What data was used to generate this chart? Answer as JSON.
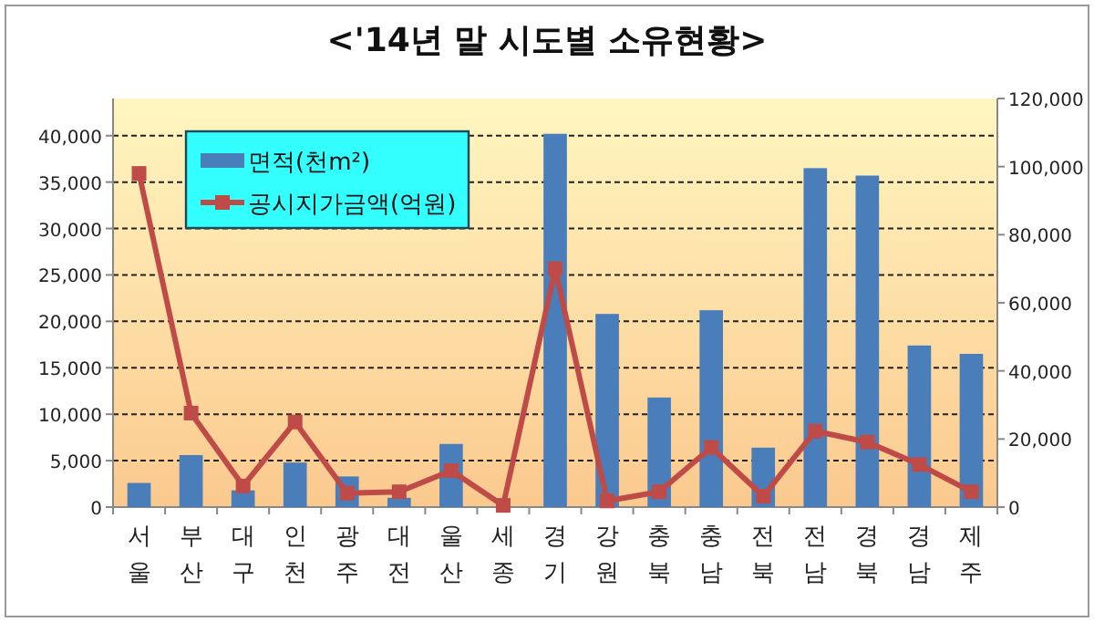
{
  "chart_data": {
    "type": "bar",
    "title": "<'14년 말 시도별 소유현황>",
    "categories": [
      "서울",
      "부산",
      "대구",
      "인천",
      "광주",
      "대전",
      "울산",
      "세종",
      "경기",
      "강원",
      "충북",
      "충남",
      "전북",
      "전남",
      "경북",
      "경남",
      "제주"
    ],
    "series": [
      {
        "name": "면적(천m²)",
        "color": "#4a7ebb",
        "values": [
          2600,
          5600,
          1800,
          4800,
          3300,
          1000,
          6800,
          null,
          40200,
          20800,
          11800,
          21200,
          6400,
          36500,
          35700,
          17400,
          16500
        ]
      },
      {
        "name": "공시지가금액(억원)",
        "type": "line",
        "axis": "y2",
        "color": "#be4b48",
        "values": [
          98000,
          27600,
          6200,
          25000,
          4100,
          4500,
          10700,
          500,
          70000,
          1800,
          4500,
          17500,
          3200,
          22300,
          19100,
          12500,
          4500
        ]
      }
    ],
    "ylim": [
      0,
      44000
    ],
    "yticks": [
      {
        "value": 0,
        "label": "0"
      },
      {
        "value": 5000,
        "label": "5,000"
      },
      {
        "value": 10000,
        "label": "10,000"
      },
      {
        "value": 15000,
        "label": "15,000"
      },
      {
        "value": 20000,
        "label": "20,000"
      },
      {
        "value": 25000,
        "label": "25,000"
      },
      {
        "value": 30000,
        "label": "30,000"
      },
      {
        "value": 35000,
        "label": "35,000"
      },
      {
        "value": 40000,
        "label": "40,000"
      }
    ],
    "y2lim": [
      0,
      120000
    ],
    "y2ticks": [
      {
        "value": 0,
        "label": "0"
      },
      {
        "value": 20000,
        "label": "20,000"
      },
      {
        "value": 40000,
        "label": "40,000"
      },
      {
        "value": 60000,
        "label": "60,000"
      },
      {
        "value": 80000,
        "label": "80,000"
      },
      {
        "value": 100000,
        "label": "100,000"
      },
      {
        "value": 120000,
        "label": "120,000"
      }
    ],
    "grid": "y",
    "legend": "top left",
    "marker": "square",
    "line_style": "solid"
  }
}
